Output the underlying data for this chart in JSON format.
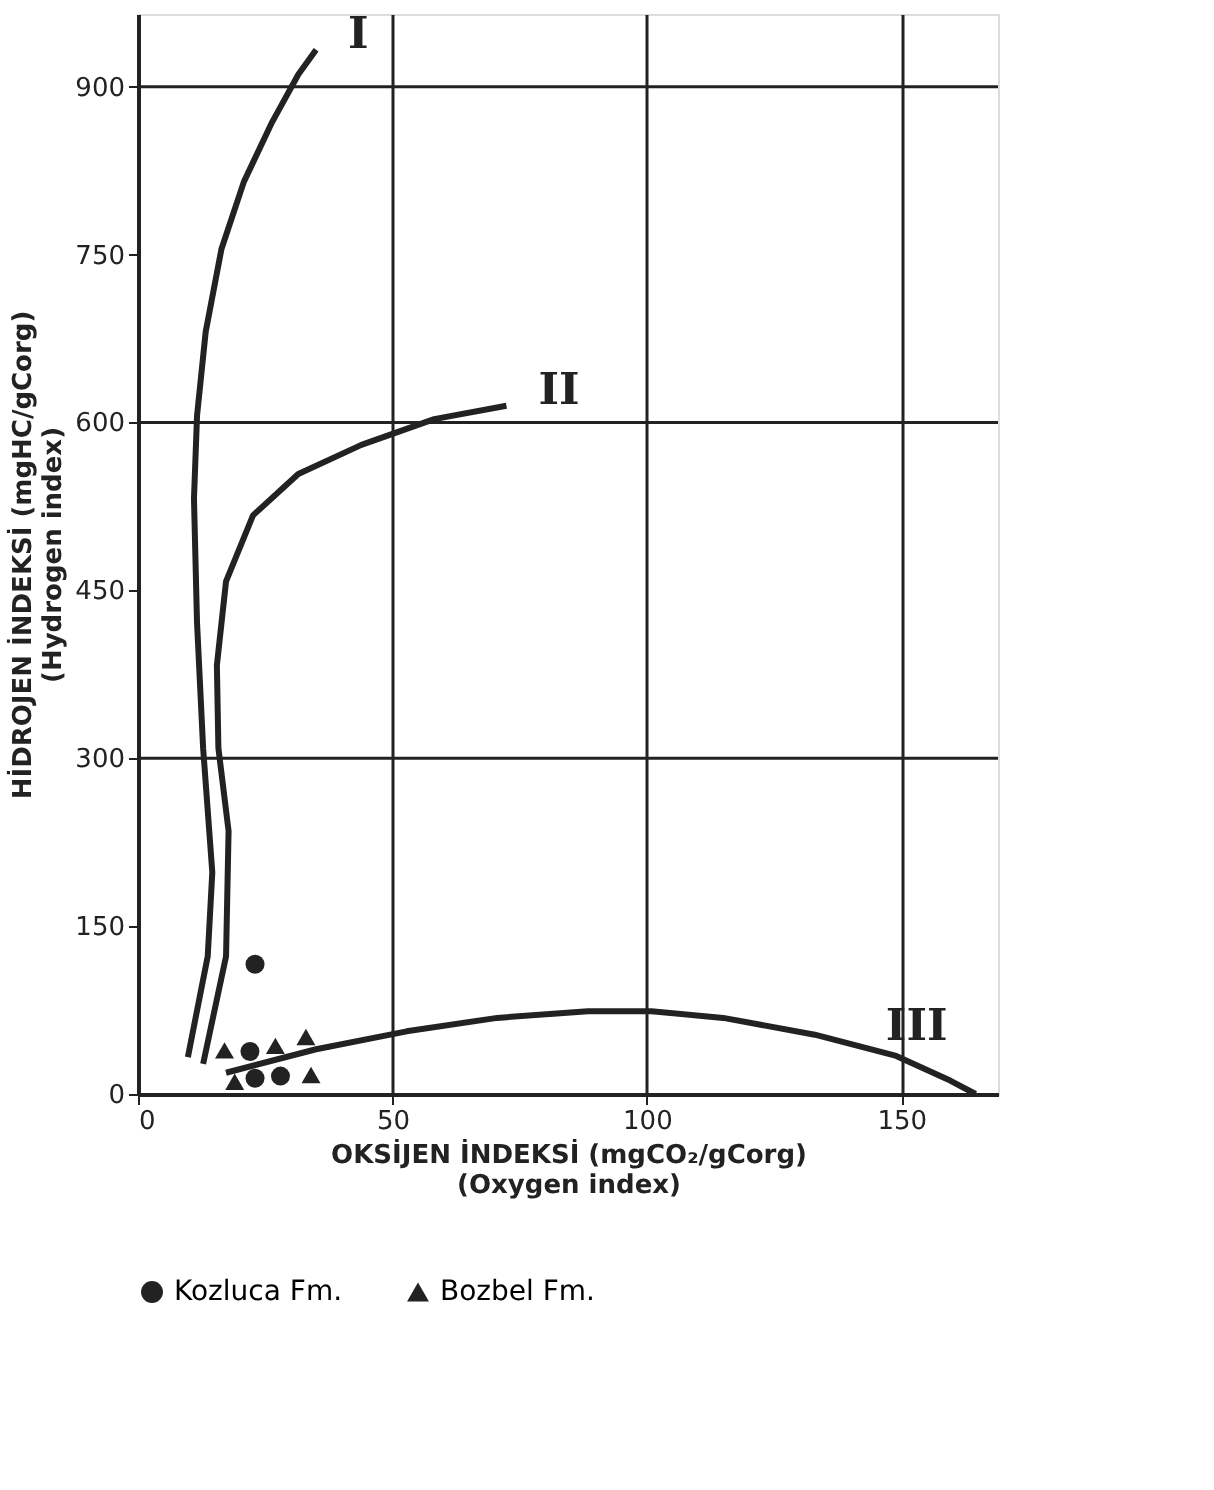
{
  "chart_data": {
    "type": "scatter",
    "xlabel": "OKSİJEN İNDEKSİ (mgCO₂/gCorg)\n(Oxygen index)",
    "ylabel": "HİDROJEN İNDEKSİ (mgHC/gCorg)\n(Hydrogen index)",
    "xlim": [
      0,
      169
    ],
    "ylim": [
      0,
      965
    ],
    "xticks": [
      0,
      50,
      100,
      150
    ],
    "yticks": [
      0,
      150,
      300,
      450,
      600,
      750,
      900
    ],
    "grid": "x",
    "legend": "bottom",
    "ref_lines": [
      {
        "axis": "y",
        "value": 300,
        "color": "#222222"
      },
      {
        "axis": "y",
        "value": 600,
        "color": "#222222"
      },
      {
        "axis": "y",
        "value": 900,
        "color": "#222222"
      }
    ],
    "series": [
      {
        "type": "line",
        "color": "#222222",
        "x": [
          9.8,
          13.7,
          14.6,
          12.8,
          11.6,
          11.0,
          11.6,
          13.3,
          16.4,
          20.8,
          26.2,
          31.5,
          35
        ],
        "values": [
          33,
          123,
          198,
          309,
          421,
          532,
          606,
          681,
          755,
          815,
          867,
          911,
          933
        ]
      },
      {
        "type": "line",
        "color": "#222222",
        "x": [
          12.8,
          17.3,
          17.8,
          15.8,
          15.5,
          17.3,
          22.6,
          31.5,
          43.9,
          58.2,
          72.4
        ],
        "values": [
          27,
          123,
          235,
          309,
          383,
          458,
          517,
          554,
          580,
          603,
          615
        ]
      },
      {
        "type": "line",
        "color": "#222222",
        "x": [
          17.3,
          35,
          52.8,
          70.6,
          88.4,
          100.9,
          115,
          133,
          149,
          159.6,
          164.6
        ],
        "values": [
          19,
          40,
          56,
          68,
          74,
          74,
          68,
          53,
          34,
          12,
          0
        ]
      },
      {
        "name": "Kozluca Fm.",
        "marker": "circle",
        "color": "#222222",
        "x": [
          23,
          22,
          23,
          28
        ],
        "values": [
          116,
          38,
          14,
          16
        ]
      },
      {
        "name": "Bozbel Fm.",
        "marker": "triangle",
        "color": "#222222",
        "x": [
          17,
          27,
          33,
          34,
          19
        ],
        "values": [
          39,
          43,
          51,
          17,
          11
        ]
      }
    ],
    "annotations": [
      "I",
      "II",
      "III"
    ]
  }
}
